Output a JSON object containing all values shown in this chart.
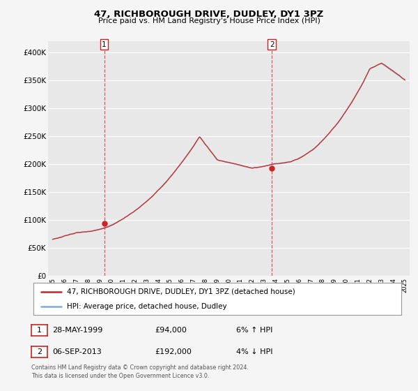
{
  "title": "47, RICHBOROUGH DRIVE, DUDLEY, DY1 3PZ",
  "subtitle": "Price paid vs. HM Land Registry's House Price Index (HPI)",
  "ylim": [
    0,
    420000
  ],
  "yticks": [
    0,
    50000,
    100000,
    150000,
    200000,
    250000,
    300000,
    350000,
    400000
  ],
  "ytick_labels": [
    "£0",
    "£50K",
    "£100K",
    "£150K",
    "£200K",
    "£250K",
    "£300K",
    "£350K",
    "£400K"
  ],
  "background_color": "#f5f5f5",
  "plot_bg_color": "#e8e8e8",
  "grid_color": "#ffffff",
  "hpi_color": "#7ab0d4",
  "price_color": "#cc2222",
  "marker1_date": 1999.38,
  "marker1_price": 94000,
  "marker1_label": "28-MAY-1999",
  "marker1_amount": "£94,000",
  "marker1_hpi": "6% ↑ HPI",
  "marker2_date": 2013.67,
  "marker2_price": 192000,
  "marker2_label": "06-SEP-2013",
  "marker2_amount": "£192,000",
  "marker2_hpi": "4% ↓ HPI",
  "footnote": "Contains HM Land Registry data © Crown copyright and database right 2024.\nThis data is licensed under the Open Government Licence v3.0.",
  "legend_line1": "47, RICHBOROUGH DRIVE, DUDLEY, DY1 3PZ (detached house)",
  "legend_line2": "HPI: Average price, detached house, Dudley"
}
